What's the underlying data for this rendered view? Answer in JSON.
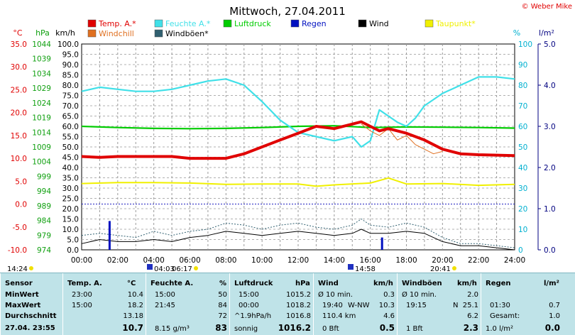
{
  "chart_data": {
    "type": "line",
    "title": "Mittwoch, 27.04.2011",
    "watermark": "© Weber Mike",
    "axes": {
      "temp": {
        "unit": "°C",
        "ticks": [
          "35.0",
          "30.0",
          "25.0",
          "20.0",
          "15.0",
          "10.0",
          "5.0",
          "0.0",
          "-5.0",
          "-10.0"
        ],
        "range": [
          -10,
          35
        ],
        "color": "#e00000"
      },
      "hpa": {
        "unit": "hPa",
        "ticks": [
          "1044",
          "1039",
          "1034",
          "1029",
          "1024",
          "1019",
          "1014",
          "1009",
          "1004",
          "999",
          "994",
          "989",
          "984",
          "979",
          "974"
        ],
        "range": [
          974,
          1044
        ],
        "color": "#10a010"
      },
      "kmh": {
        "unit": "km/h",
        "ticks": [
          "100.0",
          "95.0",
          "90.0",
          "85.0",
          "80.0",
          "75.0",
          "70.0",
          "65.0",
          "60.0",
          "55.0",
          "50.0",
          "45.0",
          "40.0",
          "35.0",
          "30.0",
          "25.0",
          "20.0",
          "15.0",
          "10.0",
          "5.0",
          "0.0"
        ],
        "range": [
          0,
          100
        ],
        "color": "#000000"
      },
      "pct": {
        "unit": "%",
        "ticks": [
          "100",
          "90",
          "80",
          "70",
          "60",
          "50",
          "40",
          "30",
          "20",
          "10",
          "0"
        ],
        "range": [
          0,
          100
        ],
        "color": "#00b0d0"
      },
      "rain": {
        "unit": "l/m²",
        "ticks": [
          "5.0",
          "4.0",
          "3.0",
          "2.0",
          "1.0",
          "0.0"
        ],
        "range": [
          0,
          5
        ],
        "color": "#000080"
      },
      "x": {
        "ticks": [
          "00:00",
          "02:00",
          "04:00",
          "06:00",
          "08:00",
          "10:00",
          "12:00",
          "14:00",
          "16:00",
          "18:00",
          "20:00",
          "22:00",
          "24:00"
        ]
      }
    },
    "legend": [
      {
        "label": "Temp. A.*",
        "color": "#e00000"
      },
      {
        "label": "Feuchte A.*",
        "color": "#40e0e8"
      },
      {
        "label": "Luftdruck",
        "color": "#00cc00"
      },
      {
        "label": "Regen",
        "color": "#0010c0"
      },
      {
        "label": "Wind",
        "color": "#000000"
      },
      {
        "label": "Taupunkt*",
        "color": "#f0f000"
      },
      {
        "label": "Windchill",
        "color": "#e07020"
      },
      {
        "label": "Windböen*",
        "color": "#306070"
      }
    ],
    "sun": {
      "sunrise": "06:17",
      "sunset": "20:41",
      "markers": [
        "04:03",
        "14:58"
      ],
      "left_time": "14:24"
    },
    "series": [
      {
        "name": "Temp. A.*",
        "axis": "temp",
        "x": [
          0,
          1,
          2,
          3,
          4,
          5,
          6,
          7,
          8,
          9,
          10,
          11,
          12,
          13,
          14,
          15,
          15.5,
          16,
          16.5,
          17,
          18,
          19,
          20,
          21,
          22,
          23,
          24
        ],
        "y": [
          10.4,
          10.2,
          10.4,
          10.4,
          10.4,
          10.4,
          10.0,
          10.0,
          10.0,
          11.0,
          12.5,
          14.0,
          15.5,
          17.0,
          16.5,
          17.5,
          18.0,
          17.0,
          16.0,
          16.5,
          15.5,
          14.0,
          12.0,
          11.0,
          10.8,
          10.7,
          10.6
        ]
      },
      {
        "name": "Feuchte A.*",
        "axis": "pct",
        "x": [
          0,
          1,
          2,
          3,
          4,
          5,
          6,
          7,
          8,
          9,
          10,
          11,
          12,
          13,
          14,
          15,
          15.5,
          16,
          16.5,
          17,
          17.5,
          18,
          18.5,
          19,
          20,
          21,
          22,
          23,
          24
        ],
        "y": [
          77,
          79,
          78,
          77,
          77,
          78,
          80,
          82,
          83,
          80,
          72,
          63,
          57,
          55,
          53,
          55,
          50,
          53,
          68,
          65,
          62,
          60,
          64,
          70,
          76,
          80,
          84,
          84,
          83
        ]
      },
      {
        "name": "Luftdruck",
        "axis": "hpa",
        "x": [
          0,
          2,
          4,
          6,
          8,
          10,
          12,
          14,
          16,
          18,
          20,
          22,
          24
        ],
        "y": [
          1016.0,
          1015.6,
          1015.3,
          1015.2,
          1015.3,
          1015.6,
          1016.0,
          1016.2,
          1015.6,
          1015.8,
          1015.7,
          1015.6,
          1015.4
        ]
      },
      {
        "name": "Taupunkt*",
        "axis": "temp",
        "x": [
          0,
          2,
          4,
          6,
          8,
          10,
          12,
          13,
          14,
          16,
          17,
          18,
          20,
          22,
          24
        ],
        "y": [
          4.5,
          4.7,
          4.7,
          4.6,
          4.3,
          4.4,
          4.4,
          3.9,
          4.2,
          4.6,
          5.7,
          4.4,
          4.5,
          4.1,
          4.3
        ]
      },
      {
        "name": "Windchill",
        "axis": "temp",
        "x": [
          15.5,
          16,
          16.5,
          17,
          17.5,
          18,
          18.5,
          19,
          19.5,
          20
        ],
        "y": [
          17.5,
          16.0,
          15.0,
          16.5,
          14.0,
          15.0,
          13.0,
          12.0,
          11.0,
          11.5
        ]
      },
      {
        "name": "Wind",
        "axis": "kmh",
        "x": [
          0,
          1,
          2,
          3,
          4,
          5,
          6,
          7,
          8,
          9,
          10,
          11,
          12,
          13,
          14,
          15,
          15.5,
          16,
          17,
          18,
          19,
          20,
          21,
          22,
          23,
          24
        ],
        "y": [
          3,
          5,
          4,
          4,
          5,
          4,
          6,
          7,
          9,
          8,
          7,
          8,
          9,
          8,
          7,
          8,
          10,
          8,
          8,
          9,
          8,
          4,
          2,
          2,
          1,
          0
        ]
      },
      {
        "name": "Windböen*",
        "axis": "kmh",
        "x": [
          0,
          1,
          2,
          3,
          4,
          5,
          6,
          7,
          8,
          9,
          10,
          11,
          12,
          13,
          14,
          15,
          15.5,
          16,
          17,
          18,
          19,
          20,
          21,
          22,
          23,
          24
        ],
        "y": [
          7,
          8,
          7,
          6,
          9,
          7,
          9,
          10,
          13,
          12,
          10,
          12,
          13,
          11,
          10,
          12,
          15,
          12,
          11,
          13,
          11,
          6,
          3,
          3,
          2,
          1
        ]
      },
      {
        "name": "Regen",
        "axis": "rain",
        "type": "bar",
        "x": [
          1.55,
          16.65
        ],
        "y": [
          0.7,
          0.3
        ]
      }
    ]
  },
  "summary": {
    "headers": {
      "sensor": "Sensor",
      "temp": "Temp. A.",
      "temp_u": "°C",
      "hum": "Feuchte A.",
      "hum_u": "%",
      "pres": "Luftdruck",
      "pres_u": "hPa",
      "wind": "Wind",
      "wind_u": "km/h",
      "gust": "Windböen",
      "gust_u": "km/h",
      "rain": "Regen",
      "rain_u": "l/m²"
    },
    "rows": {
      "min": "MinWert",
      "max": "MaxWert",
      "avg": "Durchschnitt",
      "cur": "27.04. 23:55"
    },
    "temp": {
      "min_t": "23:00",
      "min": "10.4",
      "max_t": "15:00",
      "max": "18.2",
      "avg": "13.18",
      "cur": "10.7"
    },
    "hum": {
      "min_t": "15:00",
      "min": "50",
      "max_t": "21:45",
      "max": "84",
      "avg": "72",
      "cur_extra": "8.15 g/m³",
      "cur": "83"
    },
    "pres": {
      "min_t": "15:00",
      "min": "1015.2",
      "max_t": "00:00",
      "max": "1018.2",
      "avg_l": "^1.9hPa/h",
      "avg": "1016.8",
      "cur_extra": "sonnig",
      "cur": "1016.2"
    },
    "wind": {
      "r1_l": "Ø 10 min.",
      "r1": "0.3",
      "r2_t": "19:40",
      "r2_d": "W-NW",
      "r2": "10.3",
      "r3_l": "110.4 km",
      "r3": "4.6",
      "r4_l": "0 Bft",
      "r4": "0.5"
    },
    "gust": {
      "r1_l": "Ø 10 min.",
      "r1": "2.0",
      "r2_t": "19:15",
      "r2_d": "N",
      "r2": "25.1",
      "r3": "6.2",
      "r4_l": "1 Bft",
      "r4": "2.3"
    },
    "rain": {
      "r2_t": "01:30",
      "r2": "0.7",
      "r3_l": "Gesamt:",
      "r3": "1.0",
      "r4_l": "1.0 l/m²",
      "r4": "0.0"
    }
  }
}
